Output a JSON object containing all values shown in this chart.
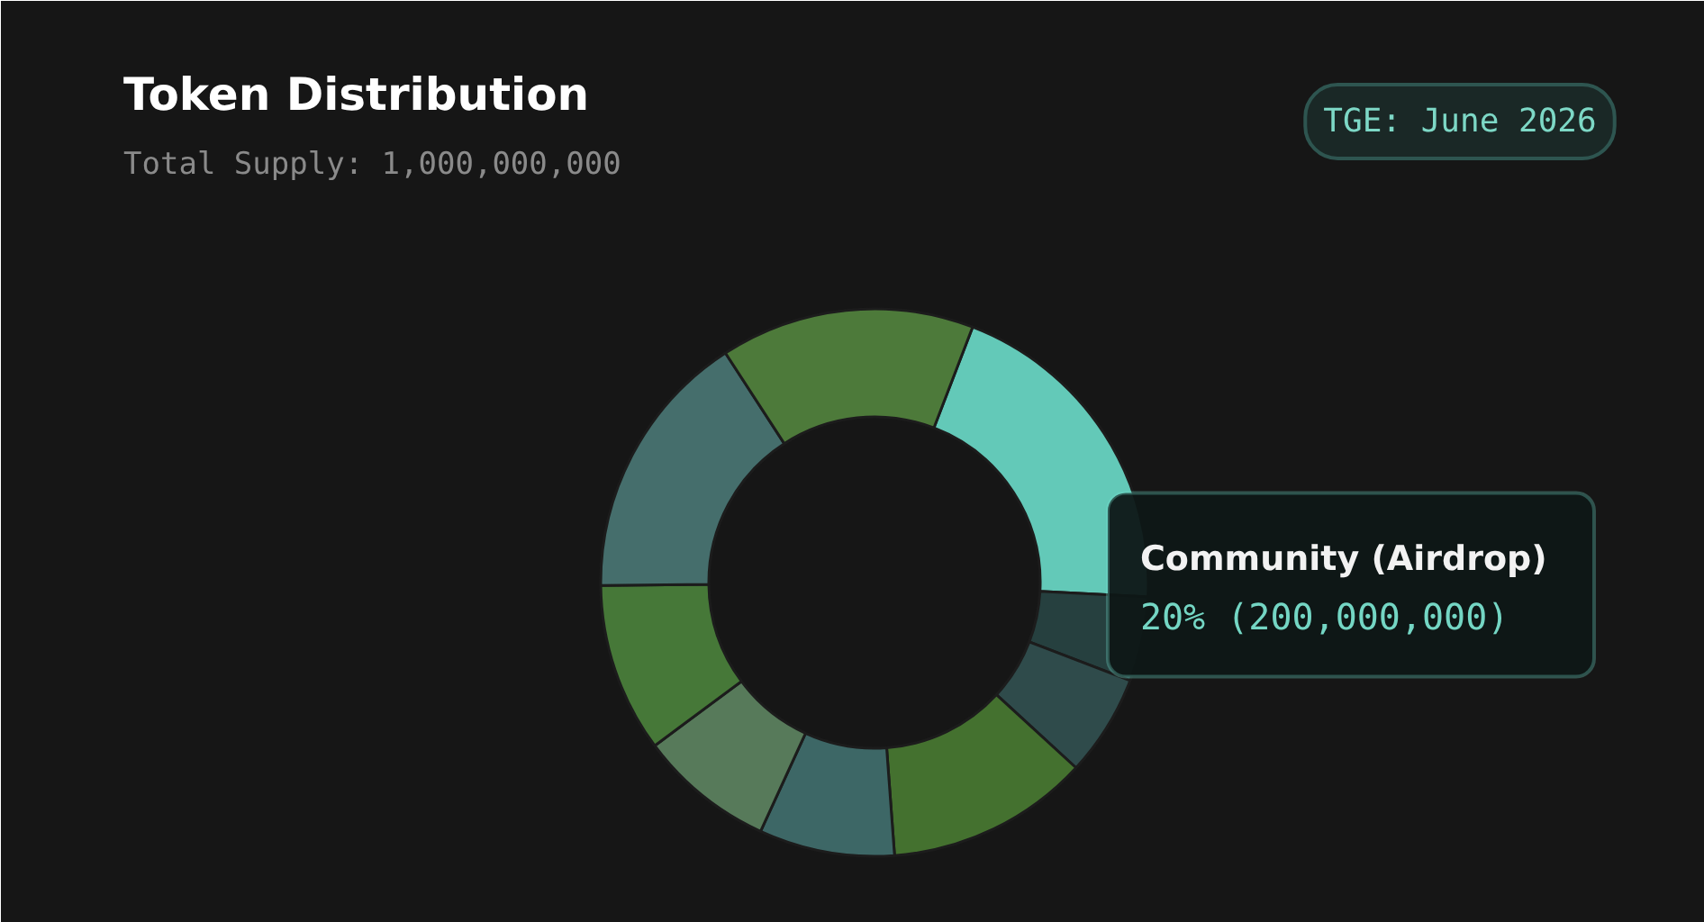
{
  "chart_data": {
    "type": "donut",
    "title": "Token Distribution",
    "subtitle": "Total Supply: 1,000,000,000",
    "annotations": [
      "TGE: June 2026"
    ],
    "categories": [
      "Community (Airdrop)",
      null,
      null,
      null,
      null,
      null,
      null,
      null,
      null
    ],
    "values": [
      20,
      5,
      6,
      12,
      8,
      8,
      10,
      16,
      15
    ],
    "colors": [
      "#63c9b8",
      "#26403f",
      "#2f4b4b",
      "#44712f",
      "#3d6766",
      "#577a5a",
      "#467838",
      "#456e6c",
      "#4d7a3a"
    ],
    "value_labels": [
      "20% (200,000,000)",
      null,
      null,
      null,
      null,
      null,
      null,
      null,
      null
    ]
  }
}
